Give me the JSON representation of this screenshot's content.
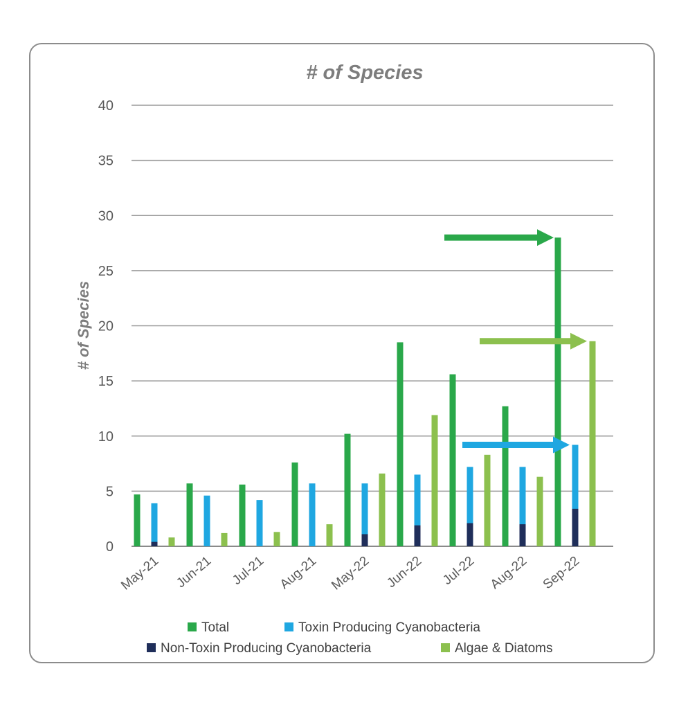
{
  "chart_data": {
    "type": "bar",
    "title": "#  of Species",
    "ylabel": "#  of Species",
    "xlabel": "",
    "ylim": [
      0,
      40
    ],
    "yticks": [
      0,
      5,
      10,
      15,
      20,
      25,
      30,
      35,
      40
    ],
    "grid": true,
    "legend_placement": "bottom",
    "categories": [
      "May-21",
      "Jun-21",
      "Jul-21",
      "Aug-21",
      "May-22",
      "Jun-22",
      "Jul-22",
      "Aug-22",
      "Sep-22"
    ],
    "series": [
      {
        "name": "Total",
        "color": "#2aa84a",
        "values": [
          4.7,
          5.7,
          5.6,
          7.6,
          10.2,
          18.5,
          15.6,
          12.7,
          28.0
        ]
      },
      {
        "name": "Toxin Producing Cyanobacteria",
        "color": "#1fa7e1",
        "values": [
          3.9,
          4.6,
          4.2,
          5.7,
          5.7,
          6.5,
          7.2,
          7.2,
          9.2
        ]
      },
      {
        "name": "Non-Toxin Producing Cyanobacteria",
        "color": "#1f2e5a",
        "values": [
          0.4,
          0,
          0,
          0,
          1.1,
          1.9,
          2.1,
          2.0,
          3.4
        ]
      },
      {
        "name": "Algae & Diatoms",
        "color": "#8cc04e",
        "values": [
          0.8,
          1.2,
          1.3,
          2.0,
          6.6,
          11.9,
          8.3,
          6.3,
          18.6
        ]
      }
    ],
    "annotations": [
      {
        "type": "arrow",
        "series": "Total",
        "category": "Sep-22"
      },
      {
        "type": "arrow",
        "series": "Algae & Diatoms",
        "category": "Sep-22"
      },
      {
        "type": "arrow",
        "series": "Toxin Producing Cyanobacteria",
        "category": "Sep-22"
      }
    ]
  }
}
